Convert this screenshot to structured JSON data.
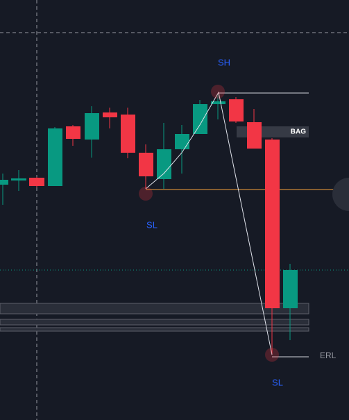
{
  "annotations": [
    "SH",
    "SL",
    "BAG",
    "ERL",
    "SL"
  ]
}
